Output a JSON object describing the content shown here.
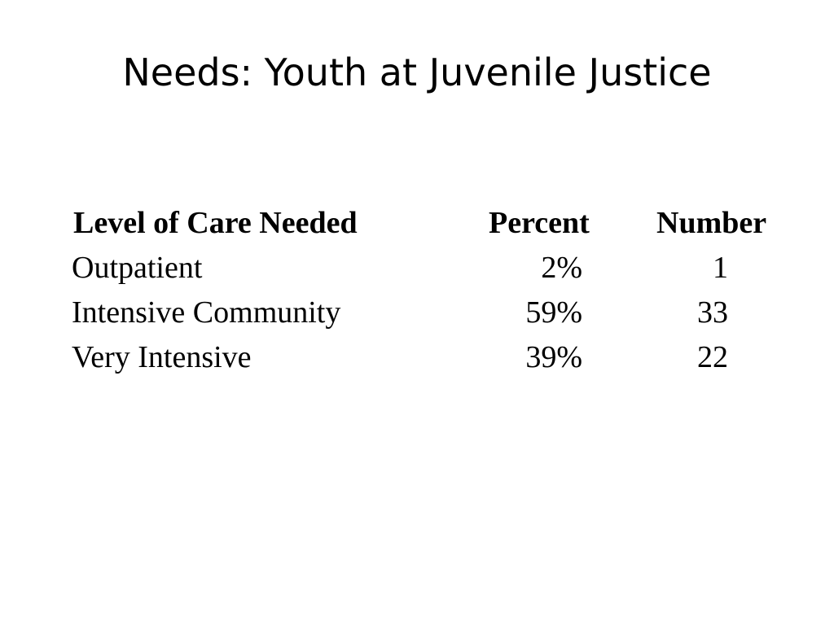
{
  "slide": {
    "title": "Needs: Youth at Juvenile Justice"
  },
  "table": {
    "headers": {
      "level": "Level of Care Needed",
      "percent": "Percent",
      "number": "Number"
    },
    "rows": [
      {
        "level": "Outpatient",
        "percent": "2%",
        "number": "1"
      },
      {
        "level": "Intensive Community",
        "percent": "59%",
        "number": "33"
      },
      {
        "level": "Very Intensive",
        "percent": "39%",
        "number": "22"
      }
    ]
  }
}
